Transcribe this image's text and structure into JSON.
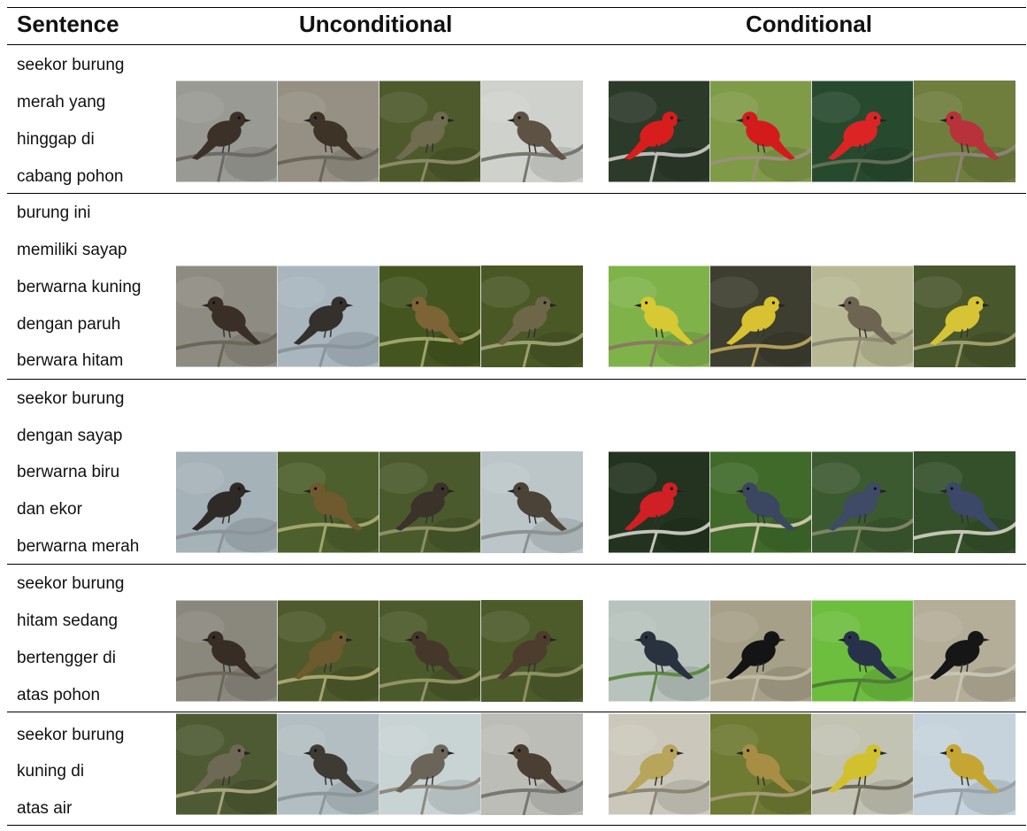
{
  "headers": {
    "sentence": "Sentence",
    "unconditional": "Unconditional",
    "conditional": "Conditional"
  },
  "rows": [
    {
      "lines": [
        "seekor burung",
        "merah yang",
        "hinggap di",
        "cabang pohon"
      ],
      "unconditional": [
        {
          "bg": "#9a9a94",
          "bird": "#3b3129",
          "branch": "#6c6a63"
        },
        {
          "bg": "#959083",
          "bird": "#3d3327",
          "branch": "#6a665c"
        },
        {
          "bg": "#4e5a2c",
          "bird": "#6f6c4f",
          "branch": "#8a8b66"
        },
        {
          "bg": "#cfd2cc",
          "bird": "#5d5244",
          "branch": "#777770"
        }
      ],
      "conditional": [
        {
          "bg": "#2c3a2a",
          "bird": "#d81d1d",
          "branch": "#bdbdb5"
        },
        {
          "bg": "#7f9b48",
          "bird": "#d31b1b",
          "branch": "#9b8f78"
        },
        {
          "bg": "#274a2e",
          "bird": "#dc2424",
          "branch": "#5e6f55"
        },
        {
          "bg": "#6f7d3d",
          "bird": "#b8323b",
          "branch": "#8b8378"
        }
      ]
    },
    {
      "lines": [
        "burung ini",
        "memiliki sayap",
        "berwarna kuning",
        "dengan paruh",
        "berwara hitam"
      ],
      "unconditional": [
        {
          "bg": "#8e8b82",
          "bird": "#3a2f26",
          "branch": "#6a6659"
        },
        {
          "bg": "#a9b6be",
          "bird": "#34302c",
          "branch": "#8a949a"
        },
        {
          "bg": "#44551f",
          "bird": "#7c6436",
          "branch": "#9ca469"
        },
        {
          "bg": "#4a5826",
          "bird": "#6d6648",
          "branch": "#9a9f71"
        }
      ],
      "conditional": [
        {
          "bg": "#7fb34a",
          "bird": "#d6c934",
          "branch": "#8a7a62"
        },
        {
          "bg": "#3d3e2f",
          "bird": "#d9c231",
          "branch": "#b59d5a"
        },
        {
          "bg": "#b8b994",
          "bird": "#6d6552",
          "branch": "#8f8a72"
        },
        {
          "bg": "#49572d",
          "bird": "#d7c336",
          "branch": "#9e9c6b"
        }
      ]
    },
    {
      "lines": [
        "seekor burung",
        "dengan sayap",
        "berwarna biru",
        "dan ekor",
        "berwarna merah"
      ],
      "unconditional": [
        {
          "bg": "#a5b2b8",
          "bird": "#2e2a27",
          "branch": "#8a949a"
        },
        {
          "bg": "#4c5f2c",
          "bird": "#6f5a30",
          "branch": "#a2a56c"
        },
        {
          "bg": "#4a5a2c",
          "bird": "#3b3229",
          "branch": "#8b8f63"
        },
        {
          "bg": "#bcc6c8",
          "bird": "#4c4338",
          "branch": "#8c9191"
        }
      ],
      "conditional": [
        {
          "bg": "#23331f",
          "bird": "#d01f25",
          "branch": "#c3c4bb"
        },
        {
          "bg": "#3f6a2a",
          "bird": "#3b4660",
          "branch": "#c8c2a6"
        },
        {
          "bg": "#3c5a30",
          "bird": "#3e4a66",
          "branch": "#7e8463"
        },
        {
          "bg": "#34502a",
          "bird": "#3c4867",
          "branch": "#c5c6b6"
        }
      ]
    },
    {
      "lines": [
        "seekor burung",
        "hitam sedang",
        "bertengger di",
        "atas pohon"
      ],
      "unconditional": [
        {
          "bg": "#8a877d",
          "bird": "#382d24",
          "branch": "#6c6759"
        },
        {
          "bg": "#4e5a2b",
          "bird": "#6e5a2f",
          "branch": "#a7a46e"
        },
        {
          "bg": "#4b5a2a",
          "bird": "#45382b",
          "branch": "#939266"
        },
        {
          "bg": "#4d5b2b",
          "bird": "#4c3d2d",
          "branch": "#8e9062"
        }
      ],
      "conditional": [
        {
          "bg": "#b8c3bd",
          "bird": "#29323f",
          "branch": "#5e8a46"
        },
        {
          "bg": "#a7a088",
          "bird": "#141414",
          "branch": "#c0b8a0"
        },
        {
          "bg": "#6dbd3e",
          "bird": "#27324a",
          "branch": "#4f7f33"
        },
        {
          "bg": "#b4ad98",
          "bird": "#161616",
          "branch": "#c9c3b2"
        }
      ]
    },
    {
      "lines": [
        "seekor burung",
        "kuning di",
        "atas air"
      ],
      "unconditional": [
        {
          "bg": "#4e5a33",
          "bird": "#6d6955",
          "branch": "#a6a47e"
        },
        {
          "bg": "#b2bec2",
          "bird": "#3e3a34",
          "branch": "#8c979a"
        },
        {
          "bg": "#c8d3d4",
          "bird": "#6b6458",
          "branch": "#8f8a80"
        },
        {
          "bg": "#bdbdb8",
          "bird": "#4b3e33",
          "branch": "#787771"
        }
      ],
      "conditional": [
        {
          "bg": "#cbc8bb",
          "bird": "#b6a55b",
          "branch": "#8c8677"
        },
        {
          "bg": "#6f7a32",
          "bird": "#a88d45",
          "branch": "#a39a74"
        },
        {
          "bg": "#c2c3b3",
          "bird": "#d1c12f",
          "branch": "#6d6b58"
        },
        {
          "bg": "#c6d3dc",
          "bird": "#c6a632",
          "branch": "#9aa1a8"
        }
      ]
    }
  ]
}
